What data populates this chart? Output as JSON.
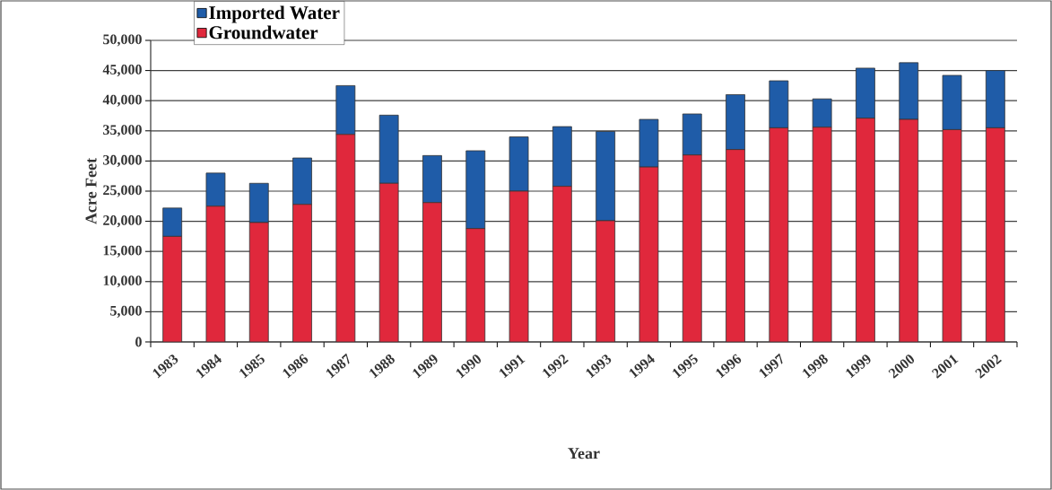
{
  "chart_data": {
    "type": "bar",
    "stacked": true,
    "xlabel": "Year",
    "ylabel": "Acre Feet",
    "categories": [
      "1983",
      "1984",
      "1985",
      "1986",
      "1987",
      "1988",
      "1989",
      "1990",
      "1991",
      "1992",
      "1993",
      "1994",
      "1995",
      "1996",
      "1997",
      "1998",
      "1999",
      "2000",
      "2001",
      "2002"
    ],
    "series": [
      {
        "name": "Groundwater",
        "color": "#e0283c",
        "values": [
          17500,
          22500,
          19800,
          22800,
          34400,
          26300,
          23100,
          18800,
          25000,
          25800,
          20100,
          29000,
          31000,
          31900,
          35500,
          35600,
          37100,
          36900,
          35200,
          35500
        ]
      },
      {
        "name": "Imported Water",
        "color": "#1f5ca8",
        "values": [
          4700,
          5500,
          6500,
          7700,
          8100,
          11300,
          7800,
          12900,
          9000,
          9900,
          14800,
          7900,
          6800,
          9100,
          7800,
          4700,
          8300,
          9400,
          9000,
          9500
        ]
      }
    ],
    "ylim": [
      0,
      50000
    ],
    "yticks": [
      {
        "value": 0,
        "label": "0"
      },
      {
        "value": 5000,
        "label": "5,000"
      },
      {
        "value": 10000,
        "label": "10,000"
      },
      {
        "value": 15000,
        "label": "15,000"
      },
      {
        "value": 20000,
        "label": "20,000"
      },
      {
        "value": 25000,
        "label": "25,000"
      },
      {
        "value": 30000,
        "label": "30,000"
      },
      {
        "value": 35000,
        "label": "35,000"
      },
      {
        "value": 40000,
        "label": "40,000"
      },
      {
        "value": 45000,
        "label": "45,000"
      },
      {
        "value": 50000,
        "label": "50,000"
      }
    ],
    "grid": "y",
    "legend": "top left"
  }
}
